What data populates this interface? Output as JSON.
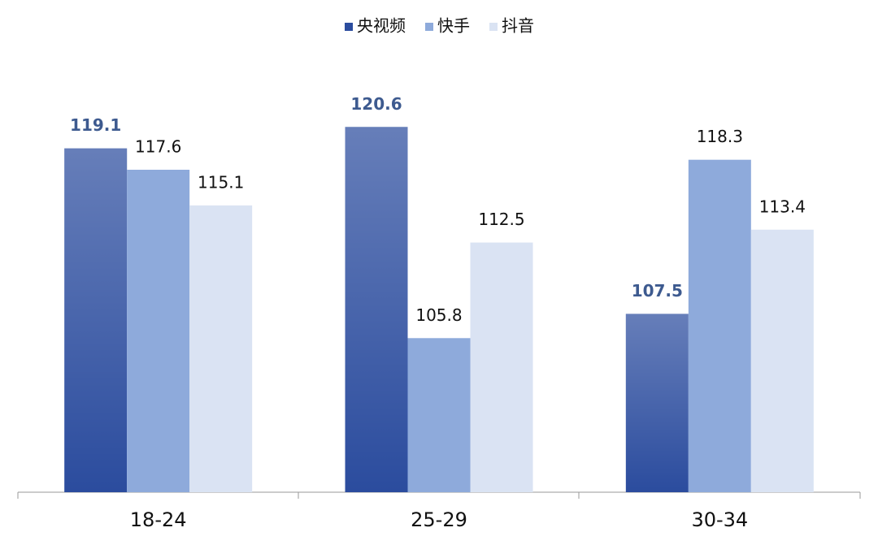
{
  "chart_data": {
    "type": "bar",
    "categories": [
      "18-24",
      "25-29",
      "30-34"
    ],
    "series": [
      {
        "name": "央视频",
        "color": "#2b4c9e",
        "values": [
          119.1,
          120.6,
          107.5
        ]
      },
      {
        "name": "快手",
        "color": "#8eaadb",
        "values": [
          117.6,
          105.8,
          118.3
        ]
      },
      {
        "name": "抖音",
        "color": "#dae3f3",
        "values": [
          115.1,
          112.5,
          113.4
        ]
      }
    ],
    "ylim": [
      95,
      125
    ],
    "legend": "top"
  }
}
